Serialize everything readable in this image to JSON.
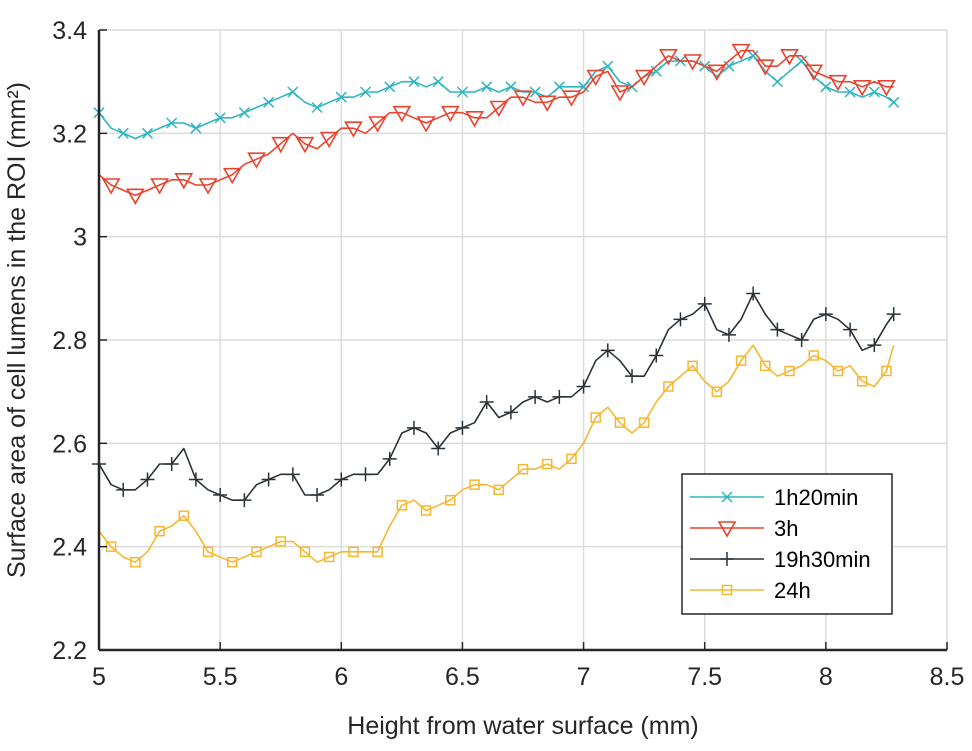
{
  "chart_data": {
    "type": "line",
    "title": "",
    "xlabel": "Height from water surface (mm)",
    "ylabel": "Surface area of cell lumens in the ROI (mm²)",
    "xlim": [
      5,
      8.5
    ],
    "ylim": [
      2.2,
      3.4
    ],
    "xticks": [
      5,
      5.5,
      6,
      6.5,
      7,
      7.5,
      8,
      8.5
    ],
    "xtick_labels": [
      "5",
      "5.5",
      "6",
      "6.5",
      "7",
      "7.5",
      "8",
      "8.5"
    ],
    "yticks": [
      2.2,
      2.4,
      2.6,
      2.8,
      3,
      3.2,
      3.4
    ],
    "ytick_labels": [
      "2.2",
      "2.4",
      "2.6",
      "2.8",
      "3",
      "3.2",
      "3.4"
    ],
    "grid": true,
    "legend_position": "bottom-right",
    "x": [
      5.0,
      5.05,
      5.1,
      5.15,
      5.2,
      5.25,
      5.3,
      5.35,
      5.4,
      5.45,
      5.5,
      5.55,
      5.6,
      5.65,
      5.7,
      5.75,
      5.8,
      5.85,
      5.9,
      5.95,
      6.0,
      6.05,
      6.1,
      6.15,
      6.2,
      6.25,
      6.3,
      6.35,
      6.4,
      6.45,
      6.5,
      6.55,
      6.6,
      6.65,
      6.7,
      6.75,
      6.8,
      6.85,
      6.9,
      6.95,
      7.0,
      7.05,
      7.1,
      7.15,
      7.2,
      7.25,
      7.3,
      7.35,
      7.4,
      7.45,
      7.5,
      7.55,
      7.6,
      7.65,
      7.7,
      7.75,
      7.8,
      7.85,
      7.9,
      7.95,
      8.0,
      8.05,
      8.1,
      8.15,
      8.2,
      8.25,
      8.28
    ],
    "series": [
      {
        "name": "1h20min",
        "color": "#2db5c0",
        "marker": "x",
        "values": [
          3.24,
          3.21,
          3.2,
          3.19,
          3.2,
          3.21,
          3.22,
          3.22,
          3.21,
          3.22,
          3.23,
          3.23,
          3.24,
          3.25,
          3.26,
          3.27,
          3.28,
          3.26,
          3.25,
          3.26,
          3.27,
          3.27,
          3.28,
          3.28,
          3.29,
          3.3,
          3.3,
          3.29,
          3.3,
          3.28,
          3.28,
          3.28,
          3.29,
          3.28,
          3.29,
          3.28,
          3.28,
          3.27,
          3.29,
          3.29,
          3.29,
          3.32,
          3.33,
          3.3,
          3.29,
          3.31,
          3.32,
          3.34,
          3.34,
          3.34,
          3.33,
          3.31,
          3.33,
          3.34,
          3.35,
          3.32,
          3.3,
          3.32,
          3.34,
          3.31,
          3.29,
          3.28,
          3.28,
          3.27,
          3.28,
          3.27,
          3.26
        ]
      },
      {
        "name": "3h",
        "color": "#e8432e",
        "marker": "triangle-down",
        "values": [
          3.12,
          3.1,
          3.09,
          3.08,
          3.09,
          3.1,
          3.11,
          3.11,
          3.1,
          3.1,
          3.11,
          3.12,
          3.14,
          3.15,
          3.16,
          3.18,
          3.2,
          3.18,
          3.17,
          3.19,
          3.21,
          3.21,
          3.2,
          3.22,
          3.24,
          3.24,
          3.23,
          3.22,
          3.23,
          3.24,
          3.24,
          3.23,
          3.23,
          3.25,
          3.27,
          3.27,
          3.26,
          3.26,
          3.27,
          3.27,
          3.28,
          3.31,
          3.32,
          3.28,
          3.29,
          3.31,
          3.33,
          3.35,
          3.34,
          3.34,
          3.33,
          3.32,
          3.34,
          3.36,
          3.36,
          3.33,
          3.33,
          3.35,
          3.35,
          3.32,
          3.31,
          3.3,
          3.3,
          3.29,
          3.3,
          3.29,
          3.29
        ]
      },
      {
        "name": "19h30min",
        "color": "#2b3237",
        "marker": "plus",
        "values": [
          2.56,
          2.52,
          2.51,
          2.51,
          2.53,
          2.56,
          2.56,
          2.59,
          2.53,
          2.51,
          2.5,
          2.49,
          2.49,
          2.52,
          2.53,
          2.54,
          2.54,
          2.5,
          2.5,
          2.51,
          2.53,
          2.54,
          2.54,
          2.54,
          2.57,
          2.62,
          2.63,
          2.62,
          2.59,
          2.62,
          2.63,
          2.64,
          2.68,
          2.65,
          2.66,
          2.68,
          2.69,
          2.68,
          2.69,
          2.69,
          2.71,
          2.76,
          2.78,
          2.76,
          2.73,
          2.73,
          2.77,
          2.82,
          2.84,
          2.85,
          2.87,
          2.82,
          2.81,
          2.84,
          2.89,
          2.85,
          2.82,
          2.81,
          2.8,
          2.84,
          2.85,
          2.84,
          2.82,
          2.78,
          2.79,
          2.83,
          2.85
        ]
      },
      {
        "name": "24h",
        "color": "#f5b731",
        "marker": "square",
        "values": [
          2.43,
          2.4,
          2.38,
          2.37,
          2.39,
          2.43,
          2.44,
          2.46,
          2.43,
          2.39,
          2.38,
          2.37,
          2.38,
          2.39,
          2.4,
          2.41,
          2.41,
          2.39,
          2.37,
          2.38,
          2.39,
          2.39,
          2.39,
          2.39,
          2.44,
          2.48,
          2.49,
          2.47,
          2.48,
          2.49,
          2.51,
          2.52,
          2.52,
          2.51,
          2.53,
          2.55,
          2.55,
          2.56,
          2.55,
          2.57,
          2.6,
          2.65,
          2.67,
          2.64,
          2.62,
          2.64,
          2.68,
          2.71,
          2.73,
          2.75,
          2.72,
          2.7,
          2.72,
          2.76,
          2.79,
          2.75,
          2.73,
          2.74,
          2.75,
          2.77,
          2.76,
          2.74,
          2.75,
          2.72,
          2.71,
          2.74,
          2.79
        ]
      }
    ]
  }
}
